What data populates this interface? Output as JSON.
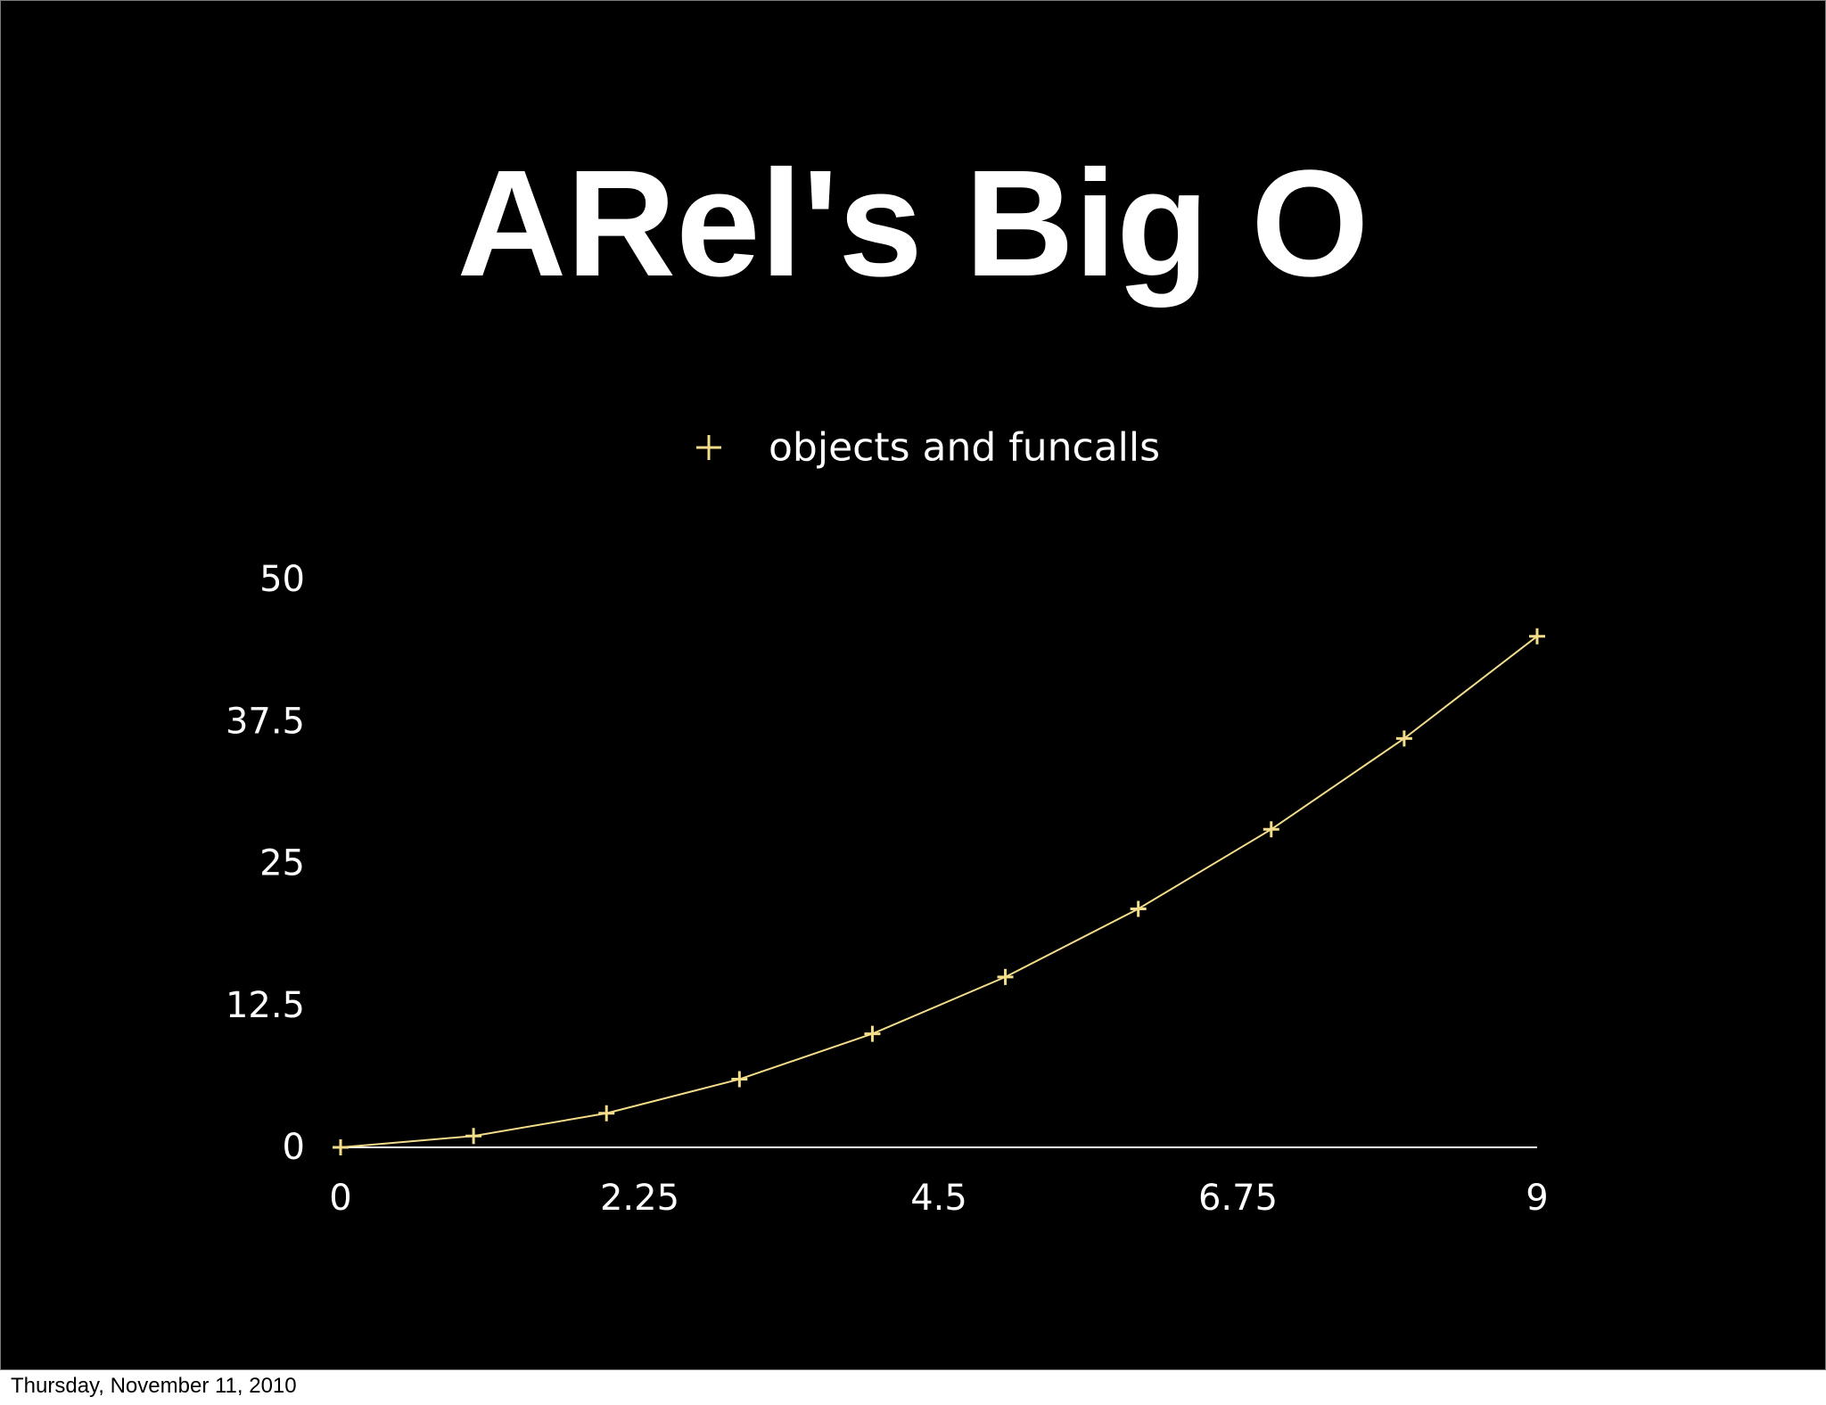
{
  "slide": {
    "title": "ARel's Big O",
    "footer_date": "Thursday, November 11, 2010"
  },
  "chart_data": {
    "type": "line",
    "title": "",
    "xlabel": "",
    "ylabel": "",
    "xlim": [
      0,
      9
    ],
    "ylim": [
      0,
      50
    ],
    "x_ticks": [
      "0",
      "2.25",
      "4.5",
      "6.75",
      "9"
    ],
    "y_ticks": [
      "0",
      "12.5",
      "25",
      "37.5",
      "50"
    ],
    "grid": false,
    "legend_position": "top-center",
    "series": [
      {
        "name": "objects and funcalls",
        "color": "#f3dc8a",
        "marker": "plus",
        "x": [
          0,
          1,
          2,
          3,
          4,
          5,
          6,
          7,
          8,
          9
        ],
        "y": [
          0,
          1,
          3,
          6,
          10,
          15,
          21,
          28,
          36,
          45
        ]
      }
    ]
  }
}
